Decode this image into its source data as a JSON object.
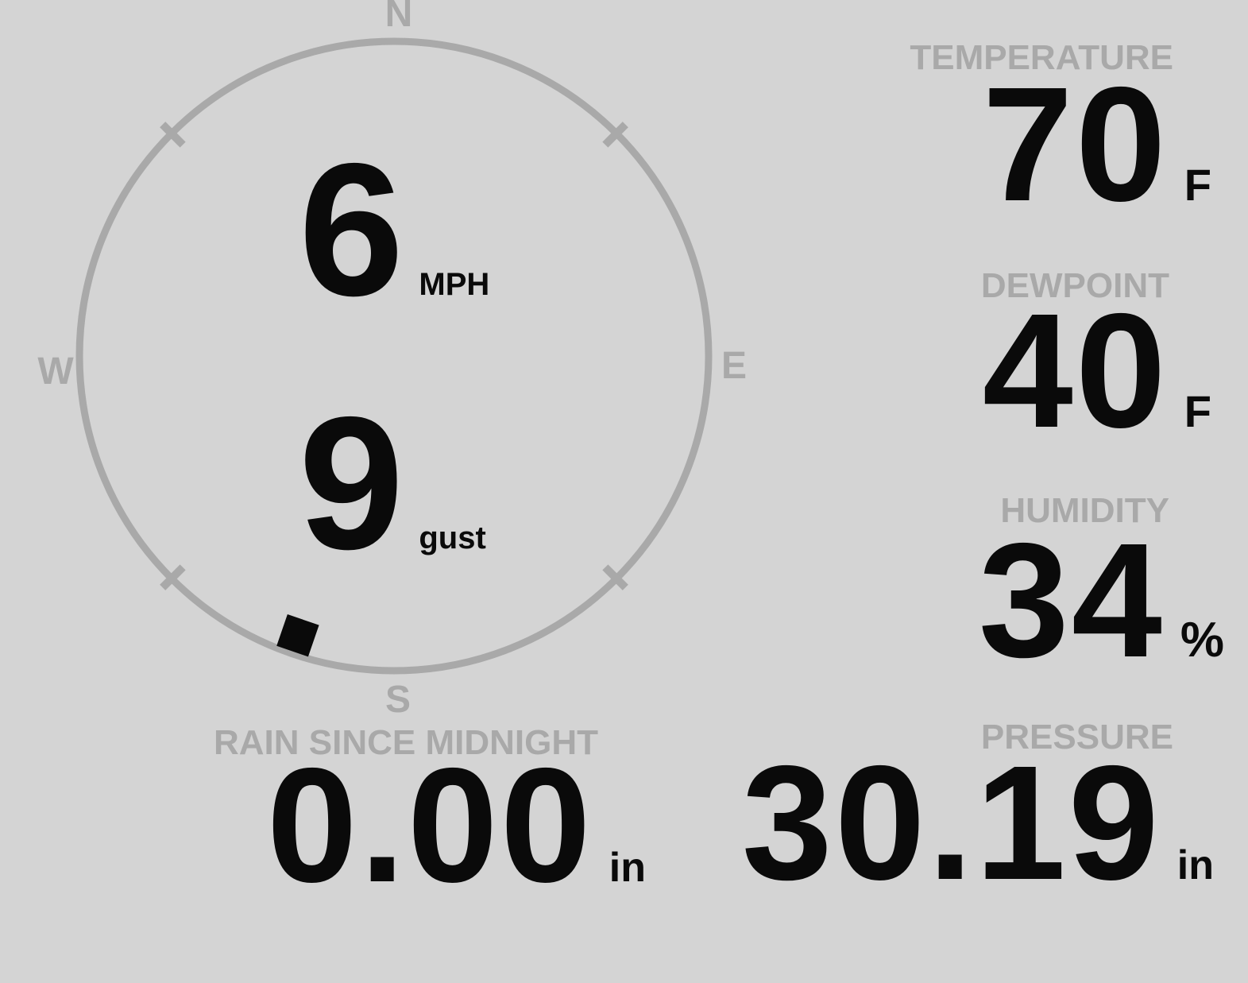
{
  "compass": {
    "labels": {
      "n": "N",
      "e": "E",
      "s": "S",
      "w": "W"
    },
    "wind_speed": "6",
    "wind_speed_unit": "MPH",
    "wind_gust": "9",
    "wind_gust_unit": "gust",
    "wind_direction_deg": 199
  },
  "metrics": {
    "temperature": {
      "label": "TEMPERATURE",
      "value": "70",
      "unit": "F"
    },
    "dewpoint": {
      "label": "DEWPOINT",
      "value": "40",
      "unit": "F"
    },
    "humidity": {
      "label": "HUMIDITY",
      "value": "34",
      "unit": "%"
    },
    "rain": {
      "label": "RAIN SINCE MIDNIGHT",
      "value": "0.00",
      "unit": "in"
    },
    "pressure": {
      "label": "PRESSURE",
      "value": "30.19",
      "unit": "in"
    }
  },
  "colors": {
    "background": "#d4d4d4",
    "muted_gray": "#a9a9a9",
    "value_black": "#0a0a0a"
  }
}
